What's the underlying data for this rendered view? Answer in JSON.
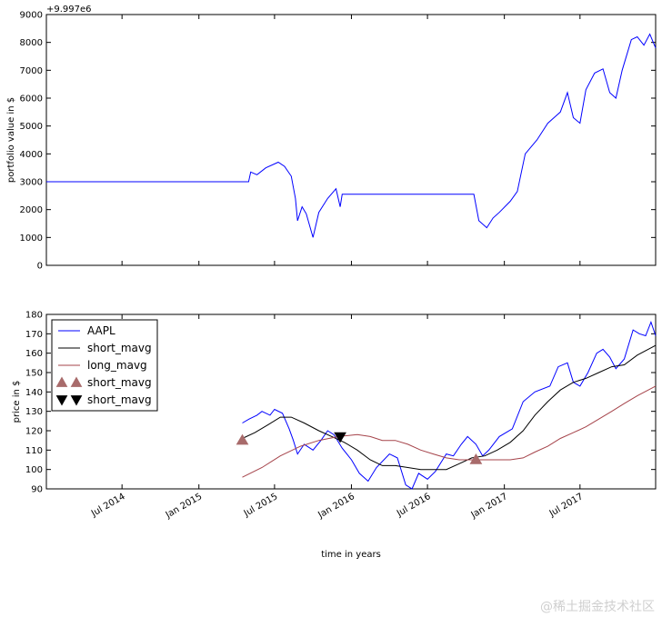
{
  "chart_data": [
    {
      "type": "line",
      "ylabel": "portfolio value in $",
      "offset_label": "+9.997e6",
      "ylim": [
        0,
        9000
      ],
      "yticks": [
        0,
        1000,
        2000,
        3000,
        4000,
        5000,
        6000,
        7000,
        8000,
        9000
      ],
      "x_range": [
        "2014-01-01",
        "2017-12-29"
      ],
      "series": [
        {
          "name": "portfolio_value",
          "color": "#0000ff",
          "points": [
            [
              "2014-01-01",
              3000
            ],
            [
              "2015-04-30",
              3000
            ],
            [
              "2015-05-05",
              3350
            ],
            [
              "2015-05-20",
              3250
            ],
            [
              "2015-06-10",
              3500
            ],
            [
              "2015-07-10",
              3700
            ],
            [
              "2015-07-25",
              3550
            ],
            [
              "2015-08-10",
              3200
            ],
            [
              "2015-08-20",
              2400
            ],
            [
              "2015-08-25",
              1600
            ],
            [
              "2015-09-05",
              2100
            ],
            [
              "2015-09-15",
              1850
            ],
            [
              "2015-10-01",
              1000
            ],
            [
              "2015-10-15",
              1900
            ],
            [
              "2015-11-05",
              2400
            ],
            [
              "2015-11-25",
              2750
            ],
            [
              "2015-12-05",
              2100
            ],
            [
              "2015-12-10",
              2550
            ],
            [
              "2016-10-20",
              2550
            ],
            [
              "2016-11-01",
              1600
            ],
            [
              "2016-11-20",
              1350
            ],
            [
              "2016-12-05",
              1700
            ],
            [
              "2016-12-20",
              1900
            ],
            [
              "2017-01-15",
              2300
            ],
            [
              "2017-02-01",
              2650
            ],
            [
              "2017-02-20",
              4000
            ],
            [
              "2017-03-20",
              4500
            ],
            [
              "2017-04-15",
              5100
            ],
            [
              "2017-05-15",
              5500
            ],
            [
              "2017-06-01",
              6200
            ],
            [
              "2017-06-15",
              5300
            ],
            [
              "2017-07-01",
              5100
            ],
            [
              "2017-07-15",
              6300
            ],
            [
              "2017-08-05",
              6900
            ],
            [
              "2017-08-25",
              7050
            ],
            [
              "2017-09-10",
              6200
            ],
            [
              "2017-09-25",
              6000
            ],
            [
              "2017-10-10",
              7000
            ],
            [
              "2017-11-01",
              8100
            ],
            [
              "2017-11-15",
              8200
            ],
            [
              "2017-12-01",
              7900
            ],
            [
              "2017-12-15",
              8300
            ],
            [
              "2017-12-29",
              7800
            ]
          ]
        }
      ]
    },
    {
      "type": "line",
      "xlabel": "time in years",
      "ylabel": "price in $",
      "ylim": [
        90,
        180
      ],
      "yticks": [
        90,
        100,
        110,
        120,
        130,
        140,
        150,
        160,
        170,
        180
      ],
      "x_range": [
        "2014-01-01",
        "2017-12-29"
      ],
      "xticks": [
        {
          "date": "2014-07-01",
          "label": "Jul 2014"
        },
        {
          "date": "2015-01-01",
          "label": "Jan 2015"
        },
        {
          "date": "2015-07-01",
          "label": "Jul 2015"
        },
        {
          "date": "2016-01-01",
          "label": "Jan 2016"
        },
        {
          "date": "2016-07-01",
          "label": "Jul 2016"
        },
        {
          "date": "2017-01-01",
          "label": "Jan 2017"
        },
        {
          "date": "2017-07-01",
          "label": "Jul 2017"
        }
      ],
      "legend": {
        "position": "upper-left",
        "entries": [
          {
            "label": "AAPL",
            "kind": "line",
            "color": "#0000ff"
          },
          {
            "label": "short_mavg",
            "kind": "line",
            "color": "#000000"
          },
          {
            "label": "long_mavg",
            "kind": "line",
            "color": "#a5434a"
          },
          {
            "label": "short_mavg",
            "kind": "marker-up",
            "color": "#a86b6b"
          },
          {
            "label": "short_mavg",
            "kind": "marker-down",
            "color": "#000000"
          }
        ]
      },
      "series": [
        {
          "name": "AAPL",
          "color": "#0000ff",
          "points": [
            [
              "2015-04-15",
              124
            ],
            [
              "2015-05-01",
              126
            ],
            [
              "2015-05-20",
              128
            ],
            [
              "2015-06-01",
              130
            ],
            [
              "2015-06-20",
              128
            ],
            [
              "2015-07-01",
              131
            ],
            [
              "2015-07-20",
              129
            ],
            [
              "2015-08-05",
              121
            ],
            [
              "2015-08-15",
              115
            ],
            [
              "2015-08-25",
              108
            ],
            [
              "2015-09-10",
              113
            ],
            [
              "2015-10-01",
              110
            ],
            [
              "2015-10-20",
              115
            ],
            [
              "2015-11-05",
              120
            ],
            [
              "2015-11-20",
              118
            ],
            [
              "2015-12-10",
              111
            ],
            [
              "2016-01-01",
              105
            ],
            [
              "2016-01-20",
              98
            ],
            [
              "2016-02-10",
              94
            ],
            [
              "2016-03-01",
              101
            ],
            [
              "2016-04-01",
              108
            ],
            [
              "2016-04-20",
              106
            ],
            [
              "2016-05-10",
              92
            ],
            [
              "2016-05-25",
              90
            ],
            [
              "2016-06-10",
              98
            ],
            [
              "2016-07-01",
              95
            ],
            [
              "2016-07-20",
              99
            ],
            [
              "2016-08-15",
              108
            ],
            [
              "2016-09-01",
              107
            ],
            [
              "2016-09-20",
              113
            ],
            [
              "2016-10-05",
              117
            ],
            [
              "2016-10-25",
              113
            ],
            [
              "2016-11-10",
              107
            ],
            [
              "2016-11-25",
              110
            ],
            [
              "2016-12-20",
              117
            ],
            [
              "2017-01-20",
              121
            ],
            [
              "2017-02-15",
              135
            ],
            [
              "2017-03-15",
              140
            ],
            [
              "2017-04-20",
              143
            ],
            [
              "2017-05-10",
              153
            ],
            [
              "2017-06-01",
              155
            ],
            [
              "2017-06-15",
              145
            ],
            [
              "2017-07-01",
              143
            ],
            [
              "2017-07-20",
              150
            ],
            [
              "2017-08-10",
              160
            ],
            [
              "2017-08-25",
              162
            ],
            [
              "2017-09-10",
              158
            ],
            [
              "2017-09-25",
              152
            ],
            [
              "2017-10-15",
              157
            ],
            [
              "2017-11-05",
              172
            ],
            [
              "2017-11-20",
              170
            ],
            [
              "2017-12-05",
              169
            ],
            [
              "2017-12-18",
              176
            ],
            [
              "2017-12-29",
              169
            ]
          ]
        },
        {
          "name": "short_mavg",
          "color": "#000000",
          "points": [
            [
              "2015-04-15",
              116
            ],
            [
              "2015-05-15",
              119
            ],
            [
              "2015-06-15",
              123
            ],
            [
              "2015-07-15",
              127
            ],
            [
              "2015-08-10",
              127
            ],
            [
              "2015-09-10",
              124
            ],
            [
              "2015-10-15",
              120
            ],
            [
              "2015-11-15",
              117
            ],
            [
              "2015-12-15",
              114
            ],
            [
              "2016-01-15",
              110
            ],
            [
              "2016-02-15",
              105
            ],
            [
              "2016-03-15",
              102
            ],
            [
              "2016-04-15",
              102
            ],
            [
              "2016-05-15",
              101
            ],
            [
              "2016-06-15",
              100
            ],
            [
              "2016-07-15",
              100
            ],
            [
              "2016-08-15",
              100
            ],
            [
              "2016-09-15",
              103
            ],
            [
              "2016-10-15",
              106
            ],
            [
              "2016-11-15",
              107
            ],
            [
              "2016-12-15",
              110
            ],
            [
              "2017-01-15",
              114
            ],
            [
              "2017-02-15",
              120
            ],
            [
              "2017-03-15",
              128
            ],
            [
              "2017-04-15",
              135
            ],
            [
              "2017-05-15",
              141
            ],
            [
              "2017-06-15",
              145
            ],
            [
              "2017-07-15",
              147
            ],
            [
              "2017-08-15",
              150
            ],
            [
              "2017-09-15",
              153
            ],
            [
              "2017-10-15",
              154
            ],
            [
              "2017-11-15",
              159
            ],
            [
              "2017-12-29",
              164
            ]
          ]
        },
        {
          "name": "long_mavg",
          "color": "#a5434a",
          "points": [
            [
              "2015-04-15",
              96
            ],
            [
              "2015-06-01",
              101
            ],
            [
              "2015-07-15",
              107
            ],
            [
              "2015-09-01",
              112
            ],
            [
              "2015-10-15",
              115
            ],
            [
              "2015-12-01",
              117
            ],
            [
              "2016-01-15",
              118
            ],
            [
              "2016-02-15",
              117
            ],
            [
              "2016-03-15",
              115
            ],
            [
              "2016-04-15",
              115
            ],
            [
              "2016-05-15",
              113
            ],
            [
              "2016-06-15",
              110
            ],
            [
              "2016-07-15",
              108
            ],
            [
              "2016-08-15",
              106
            ],
            [
              "2016-09-15",
              105
            ],
            [
              "2016-10-15",
              105
            ],
            [
              "2016-11-15",
              105
            ],
            [
              "2016-12-15",
              105
            ],
            [
              "2017-01-15",
              105
            ],
            [
              "2017-02-15",
              106
            ],
            [
              "2017-03-15",
              109
            ],
            [
              "2017-04-15",
              112
            ],
            [
              "2017-05-15",
              116
            ],
            [
              "2017-06-15",
              119
            ],
            [
              "2017-07-15",
              122
            ],
            [
              "2017-08-15",
              126
            ],
            [
              "2017-09-15",
              130
            ],
            [
              "2017-10-15",
              134
            ],
            [
              "2017-11-15",
              138
            ],
            [
              "2017-12-29",
              143
            ]
          ]
        }
      ],
      "markers": [
        {
          "kind": "buy",
          "date": "2015-04-15",
          "value": 115,
          "color": "#a86b6b"
        },
        {
          "kind": "buy",
          "date": "2016-10-25",
          "value": 105,
          "color": "#a86b6b"
        },
        {
          "kind": "sell",
          "date": "2015-12-05",
          "value": 117,
          "color": "#000000"
        }
      ]
    }
  ],
  "watermark": "@稀土掘金技术社区"
}
